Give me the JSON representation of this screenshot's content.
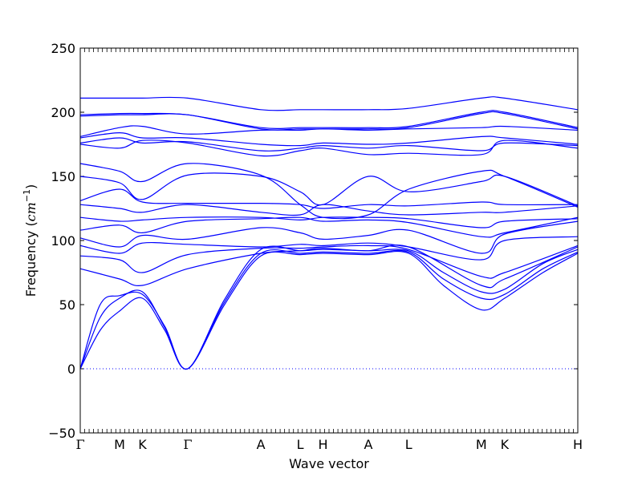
{
  "chart_data": {
    "type": "line",
    "title": "",
    "xlabel": "Wave vector",
    "ylabel": "Frequency",
    "ylabel_unit_base": "cm",
    "ylabel_unit_exp": "−1",
    "ylim": [
      -50,
      250
    ],
    "yticks": [
      -50,
      0,
      50,
      100,
      150,
      200,
      250
    ],
    "xlim": [
      0,
      1
    ],
    "xticks": [
      {
        "label": "Γ",
        "x": 0.0
      },
      {
        "label": "M",
        "x": 0.079
      },
      {
        "label": "K",
        "x": 0.125
      },
      {
        "label": "Γ",
        "x": 0.216
      },
      {
        "label": "A",
        "x": 0.363
      },
      {
        "label": "L",
        "x": 0.442
      },
      {
        "label": "H",
        "x": 0.488
      },
      {
        "label": "A",
        "x": 0.579
      },
      {
        "label": "L",
        "x": 0.66
      },
      {
        "label": "M",
        "x": 0.806
      },
      {
        "label": "K",
        "x": 0.853
      },
      {
        "label": "H",
        "x": 1.0
      }
    ],
    "zero_line": true,
    "line_color": "#0000ff",
    "series": [
      {
        "x": [
          0,
          0.04,
          0.079,
          0.125,
          0.17,
          0.216,
          0.29,
          0.363,
          0.442,
          0.488,
          0.579,
          0.66,
          0.73,
          0.806,
          0.853,
          0.93,
          1.0
        ],
        "y": [
          0,
          30,
          45,
          55,
          30,
          0,
          50,
          88,
          89,
          90,
          89,
          90,
          65,
          46,
          55,
          75,
          90
        ]
      },
      {
        "x": [
          0,
          0.04,
          0.079,
          0.125,
          0.17,
          0.216,
          0.29,
          0.363,
          0.442,
          0.488,
          0.579,
          0.66,
          0.73,
          0.806,
          0.853,
          0.93,
          1.0
        ],
        "y": [
          0,
          40,
          55,
          60,
          32,
          0,
          52,
          90,
          90,
          91,
          90,
          91,
          70,
          55,
          58,
          78,
          91
        ]
      },
      {
        "x": [
          0,
          0.04,
          0.079,
          0.125,
          0.17,
          0.216,
          0.29,
          0.363,
          0.442,
          0.488,
          0.579,
          0.66,
          0.73,
          0.806,
          0.853,
          0.93,
          1.0
        ],
        "y": [
          0,
          50,
          57,
          58,
          33,
          0,
          54,
          93,
          92,
          93,
          92,
          92,
          75,
          60,
          62,
          82,
          93
        ]
      },
      {
        "x": [
          0,
          0.079,
          0.125,
          0.216,
          0.363,
          0.442,
          0.488,
          0.579,
          0.66,
          0.806,
          0.853,
          1.0
        ],
        "y": [
          78,
          70,
          65,
          78,
          90,
          92,
          94,
          92,
          95,
          65,
          70,
          95
        ]
      },
      {
        "x": [
          0,
          0.079,
          0.125,
          0.216,
          0.363,
          0.442,
          0.488,
          0.579,
          0.66,
          0.806,
          0.853,
          1.0
        ],
        "y": [
          88,
          85,
          75,
          89,
          94,
          94,
          95,
          96,
          93,
          72,
          75,
          96
        ]
      },
      {
        "x": [
          0,
          0.079,
          0.125,
          0.216,
          0.363,
          0.442,
          0.488,
          0.579,
          0.66,
          0.806,
          0.853,
          1.0
        ],
        "y": [
          96,
          90,
          98,
          97,
          95,
          97,
          96,
          98,
          95,
          85,
          100,
          103
        ]
      },
      {
        "x": [
          0,
          0.079,
          0.125,
          0.216,
          0.363,
          0.442,
          0.488,
          0.579,
          0.66,
          0.806,
          0.853,
          1.0
        ],
        "y": [
          102,
          95,
          104,
          101,
          110,
          106,
          101,
          104,
          108,
          90,
          105,
          115
        ]
      },
      {
        "x": [
          0,
          0.079,
          0.125,
          0.216,
          0.363,
          0.442,
          0.488,
          0.579,
          0.66,
          0.806,
          0.853,
          1.0
        ],
        "y": [
          108,
          112,
          106,
          115,
          117,
          118,
          115,
          116,
          114,
          103,
          106,
          118
        ]
      },
      {
        "x": [
          0,
          0.079,
          0.125,
          0.216,
          0.363,
          0.442,
          0.488,
          0.579,
          0.66,
          0.806,
          0.853,
          1.0
        ],
        "y": [
          118,
          115,
          116,
          118,
          118,
          116,
          118,
          118,
          117,
          110,
          115,
          117
        ]
      },
      {
        "x": [
          0,
          0.079,
          0.125,
          0.216,
          0.363,
          0.442,
          0.488,
          0.579,
          0.66,
          0.806,
          0.853,
          1.0
        ],
        "y": [
          128,
          125,
          122,
          128,
          122,
          120,
          128,
          123,
          120,
          122,
          122,
          127
        ]
      },
      {
        "x": [
          0,
          0.079,
          0.125,
          0.216,
          0.363,
          0.442,
          0.488,
          0.579,
          0.66,
          0.806,
          0.853,
          1.0
        ],
        "y": [
          131,
          140,
          130,
          129,
          129,
          128,
          125,
          128,
          127,
          130,
          128,
          128
        ]
      },
      {
        "x": [
          0,
          0.079,
          0.125,
          0.216,
          0.363,
          0.442,
          0.488,
          0.579,
          0.66,
          0.806,
          0.853,
          1.0
        ],
        "y": [
          150,
          145,
          132,
          151,
          150,
          138,
          128,
          150,
          138,
          146,
          150,
          127
        ]
      },
      {
        "x": [
          0,
          0.079,
          0.125,
          0.216,
          0.363,
          0.442,
          0.488,
          0.579,
          0.66,
          0.806,
          0.853,
          1.0
        ],
        "y": [
          160,
          154,
          146,
          160,
          151,
          128,
          118,
          120,
          140,
          154,
          150,
          126
        ]
      },
      {
        "x": [
          0,
          0.079,
          0.125,
          0.216,
          0.363,
          0.442,
          0.488,
          0.579,
          0.66,
          0.806,
          0.853,
          1.0
        ],
        "y": [
          175,
          172,
          178,
          176,
          166,
          170,
          172,
          167,
          168,
          167,
          178,
          172
        ]
      },
      {
        "x": [
          0,
          0.079,
          0.125,
          0.216,
          0.363,
          0.442,
          0.488,
          0.579,
          0.66,
          0.806,
          0.853,
          1.0
        ],
        "y": [
          176,
          180,
          176,
          177,
          170,
          172,
          174,
          172,
          174,
          170,
          176,
          174
        ]
      },
      {
        "x": [
          0,
          0.079,
          0.125,
          0.216,
          0.363,
          0.442,
          0.488,
          0.579,
          0.66,
          0.806,
          0.853,
          1.0
        ],
        "y": [
          180,
          184,
          180,
          180,
          175,
          174,
          176,
          175,
          176,
          181,
          180,
          175
        ]
      },
      {
        "x": [
          0,
          0.079,
          0.125,
          0.216,
          0.363,
          0.442,
          0.488,
          0.579,
          0.66,
          0.806,
          0.853,
          1.0
        ],
        "y": [
          181,
          188,
          189,
          183,
          186,
          186,
          187,
          186,
          187,
          188,
          189,
          186
        ]
      },
      {
        "x": [
          0,
          0.079,
          0.125,
          0.216,
          0.363,
          0.442,
          0.488,
          0.579,
          0.66,
          0.806,
          0.853,
          1.0
        ],
        "y": [
          197,
          198,
          198,
          198,
          187,
          187,
          187,
          187,
          188,
          199,
          199,
          187
        ]
      },
      {
        "x": [
          0,
          0.079,
          0.125,
          0.216,
          0.363,
          0.442,
          0.488,
          0.579,
          0.66,
          0.806,
          0.853,
          1.0
        ],
        "y": [
          198,
          199,
          199,
          198,
          188,
          188,
          188,
          188,
          189,
          200,
          200,
          188
        ]
      },
      {
        "x": [
          0,
          0.079,
          0.125,
          0.216,
          0.363,
          0.442,
          0.488,
          0.579,
          0.66,
          0.806,
          0.853,
          1.0
        ],
        "y": [
          211,
          211,
          211,
          211,
          202,
          202,
          202,
          202,
          203,
          211,
          211,
          202
        ]
      }
    ]
  }
}
